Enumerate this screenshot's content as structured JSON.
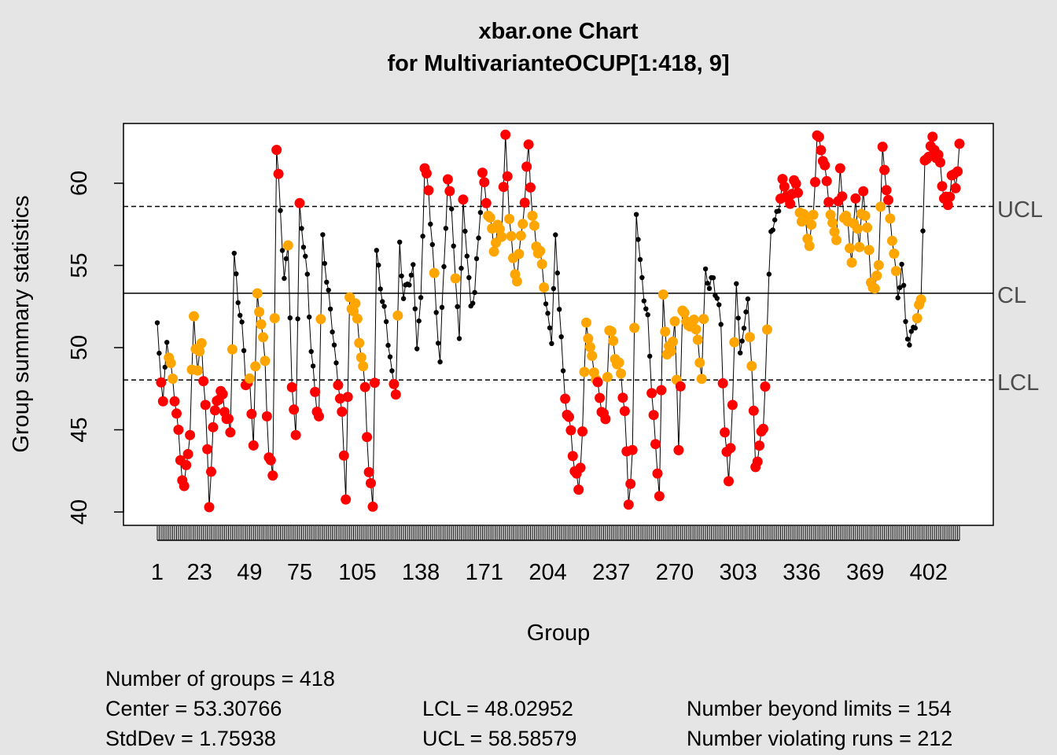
{
  "chart_data": {
    "type": "scatter",
    "title": "xbar.one Chart",
    "subtitle": "for MultivarianteOCUP[1:418, 9]",
    "xlabel": "Group",
    "ylabel": "Group summary statistics",
    "xlim": [
      1,
      418
    ],
    "ylim": [
      39.5,
      63.2
    ],
    "x_tick_labels": [
      "1",
      "23",
      "49",
      "75",
      "105",
      "138",
      "171",
      "204",
      "237",
      "270",
      "303",
      "336",
      "369",
      "402"
    ],
    "x_ticks": [
      1,
      23,
      49,
      75,
      105,
      138,
      171,
      204,
      237,
      270,
      303,
      336,
      369,
      402
    ],
    "y_ticks": [
      40,
      45,
      50,
      55,
      60
    ],
    "control_limits": {
      "UCL": 58.58579,
      "CL": 53.30766,
      "LCL": 48.02952
    },
    "limit_labels": {
      "ucl": "UCL",
      "cl": "CL",
      "lcl": "LCL"
    },
    "colors": {
      "in_control": "#000000",
      "beyond_limits": "#ff0000",
      "violating_runs": "#ffa500"
    },
    "anchor_values": [
      [
        1,
        51
      ],
      [
        4,
        46.5
      ],
      [
        6,
        50.8
      ],
      [
        9,
        47.9
      ],
      [
        11,
        45.8
      ],
      [
        13,
        43.2
      ],
      [
        15,
        41.7
      ],
      [
        18,
        44.8
      ],
      [
        20,
        51.5
      ],
      [
        22,
        48.8
      ],
      [
        24,
        50.5
      ],
      [
        26,
        46.4
      ],
      [
        28,
        40.2
      ],
      [
        30,
        44.9
      ],
      [
        32,
        47.3
      ],
      [
        35,
        47
      ],
      [
        37,
        45.4
      ],
      [
        39,
        45
      ],
      [
        41,
        55.8
      ],
      [
        43,
        53
      ],
      [
        45,
        51
      ],
      [
        47,
        48
      ],
      [
        49,
        48
      ],
      [
        51,
        44.5
      ],
      [
        53,
        52.8
      ],
      [
        55,
        51.5
      ],
      [
        57,
        49.2
      ],
      [
        59,
        43.6
      ],
      [
        61,
        42.1
      ],
      [
        63,
        61.7
      ],
      [
        65,
        58.6
      ],
      [
        67,
        54.2
      ],
      [
        69,
        56.5
      ],
      [
        71,
        47
      ],
      [
        73,
        45
      ],
      [
        75,
        58.7
      ],
      [
        77,
        56.5
      ],
      [
        79,
        54
      ],
      [
        81,
        49.8
      ],
      [
        83,
        47.4
      ],
      [
        85,
        46
      ],
      [
        87,
        56.8
      ],
      [
        89,
        53.6
      ],
      [
        91,
        52.7
      ],
      [
        93,
        50.1
      ],
      [
        95,
        48
      ],
      [
        97,
        45.5
      ],
      [
        99,
        41.1
      ],
      [
        101,
        53
      ],
      [
        104,
        52.3
      ],
      [
        107,
        49.4
      ],
      [
        109,
        47.8
      ],
      [
        111,
        42.5
      ],
      [
        113,
        40.3
      ],
      [
        115,
        55.5
      ],
      [
        117,
        54
      ],
      [
        120,
        51.6
      ],
      [
        123,
        48
      ],
      [
        125,
        47.5
      ],
      [
        127,
        56.4
      ],
      [
        129,
        53.2
      ],
      [
        131,
        53.5
      ],
      [
        134,
        54.8
      ],
      [
        136,
        50.5
      ],
      [
        138,
        52.7
      ],
      [
        140,
        60.9
      ],
      [
        142,
        59.4
      ],
      [
        144,
        56.6
      ],
      [
        146,
        52.2
      ],
      [
        148,
        48.8
      ],
      [
        150,
        55
      ],
      [
        152,
        60.2
      ],
      [
        154,
        58.9
      ],
      [
        156,
        53.7
      ],
      [
        158,
        50.7
      ],
      [
        160,
        58.8
      ],
      [
        162,
        56.1
      ],
      [
        164,
        52.2
      ],
      [
        166,
        53.3
      ],
      [
        168,
        56.6
      ],
      [
        170,
        60.9
      ],
      [
        172,
        58.9
      ],
      [
        174,
        57.5
      ],
      [
        176,
        56
      ],
      [
        178,
        57.4
      ],
      [
        180,
        57.2
      ],
      [
        182,
        62.4
      ],
      [
        184,
        58
      ],
      [
        186,
        55.3
      ],
      [
        188,
        54.5
      ],
      [
        190,
        56.5
      ],
      [
        192,
        58.7
      ],
      [
        194,
        62.4
      ],
      [
        196,
        58.2
      ],
      [
        198,
        56.3
      ],
      [
        200,
        55.4
      ],
      [
        202,
        53.9
      ],
      [
        204,
        52
      ],
      [
        206,
        50.7
      ],
      [
        208,
        56.3
      ],
      [
        210,
        52.5
      ],
      [
        212,
        48.5
      ],
      [
        214,
        46.3
      ],
      [
        216,
        44.7
      ],
      [
        218,
        42.3
      ],
      [
        220,
        41.5
      ],
      [
        222,
        45
      ],
      [
        224,
        51.7
      ],
      [
        226,
        49.5
      ],
      [
        228,
        48.8
      ],
      [
        230,
        47.8
      ],
      [
        232,
        46.5
      ],
      [
        234,
        45.1
      ],
      [
        236,
        51.2
      ],
      [
        238,
        50.4
      ],
      [
        240,
        49.3
      ],
      [
        242,
        48.2
      ],
      [
        244,
        45.9
      ],
      [
        246,
        40.7
      ],
      [
        248,
        43.8
      ],
      [
        250,
        58.3
      ],
      [
        252,
        54.8
      ],
      [
        254,
        53.2
      ],
      [
        256,
        51.9
      ],
      [
        258,
        47.6
      ],
      [
        260,
        43.6
      ],
      [
        262,
        41.1
      ],
      [
        264,
        53.3
      ],
      [
        266,
        49.8
      ],
      [
        268,
        49.6
      ],
      [
        270,
        51.3
      ],
      [
        272,
        44.1
      ],
      [
        274,
        52.2
      ],
      [
        276,
        51.8
      ],
      [
        278,
        50.7
      ],
      [
        280,
        52.1
      ],
      [
        282,
        50.4
      ],
      [
        284,
        48.4
      ],
      [
        286,
        54.3
      ],
      [
        288,
        53.7
      ],
      [
        290,
        54.4
      ],
      [
        292,
        53.1
      ],
      [
        294,
        51.3
      ],
      [
        296,
        44.5
      ],
      [
        298,
        42.3
      ],
      [
        300,
        46.4
      ],
      [
        302,
        54.1
      ],
      [
        304,
        49.1
      ],
      [
        306,
        51.6
      ],
      [
        308,
        52.9
      ],
      [
        310,
        49.1
      ],
      [
        312,
        42.3
      ],
      [
        314,
        44.1
      ],
      [
        316,
        45.3
      ],
      [
        318,
        51.1
      ],
      [
        320,
        57
      ],
      [
        322,
        57.4
      ],
      [
        324,
        58.8
      ],
      [
        326,
        60.1
      ],
      [
        328,
        59.4
      ],
      [
        330,
        58.2
      ],
      [
        332,
        60.6
      ],
      [
        334,
        59.4
      ],
      [
        336,
        57.8
      ],
      [
        338,
        57.4
      ],
      [
        340,
        56.2
      ],
      [
        342,
        58.4
      ],
      [
        344,
        62.8
      ],
      [
        346,
        62
      ],
      [
        348,
        60.7
      ],
      [
        350,
        59.4
      ],
      [
        352,
        57.4
      ],
      [
        354,
        56.7
      ],
      [
        356,
        60.4
      ],
      [
        358,
        58.3
      ],
      [
        360,
        57.7
      ],
      [
        362,
        55.2
      ],
      [
        364,
        58.8
      ],
      [
        366,
        56.1
      ],
      [
        368,
        59.9
      ],
      [
        370,
        57.1
      ],
      [
        372,
        54
      ],
      [
        374,
        53.2
      ],
      [
        376,
        55.6
      ],
      [
        378,
        62
      ],
      [
        380,
        59.7
      ],
      [
        382,
        57.4
      ],
      [
        384,
        56.1
      ],
      [
        386,
        53.1
      ],
      [
        388,
        55
      ],
      [
        390,
        51.4
      ],
      [
        392,
        50.1
      ],
      [
        394,
        51.7
      ],
      [
        396,
        51.5
      ],
      [
        398,
        53
      ],
      [
        400,
        61
      ],
      [
        402,
        62.2
      ],
      [
        404,
        62.6
      ],
      [
        406,
        61.6
      ],
      [
        408,
        60.9
      ],
      [
        410,
        59.4
      ],
      [
        412,
        58.8
      ],
      [
        414,
        60.3
      ],
      [
        416,
        59.6
      ],
      [
        418,
        62.3
      ]
    ]
  },
  "stats": {
    "groups": "Number of groups = 418",
    "center": "Center = 53.30766",
    "stddev": "StdDev = 1.75938",
    "lcl": "LCL = 48.02952",
    "ucl": "UCL = 58.58579",
    "beyond": "Number beyond limits = 154",
    "violating": "Number violating runs = 212"
  }
}
